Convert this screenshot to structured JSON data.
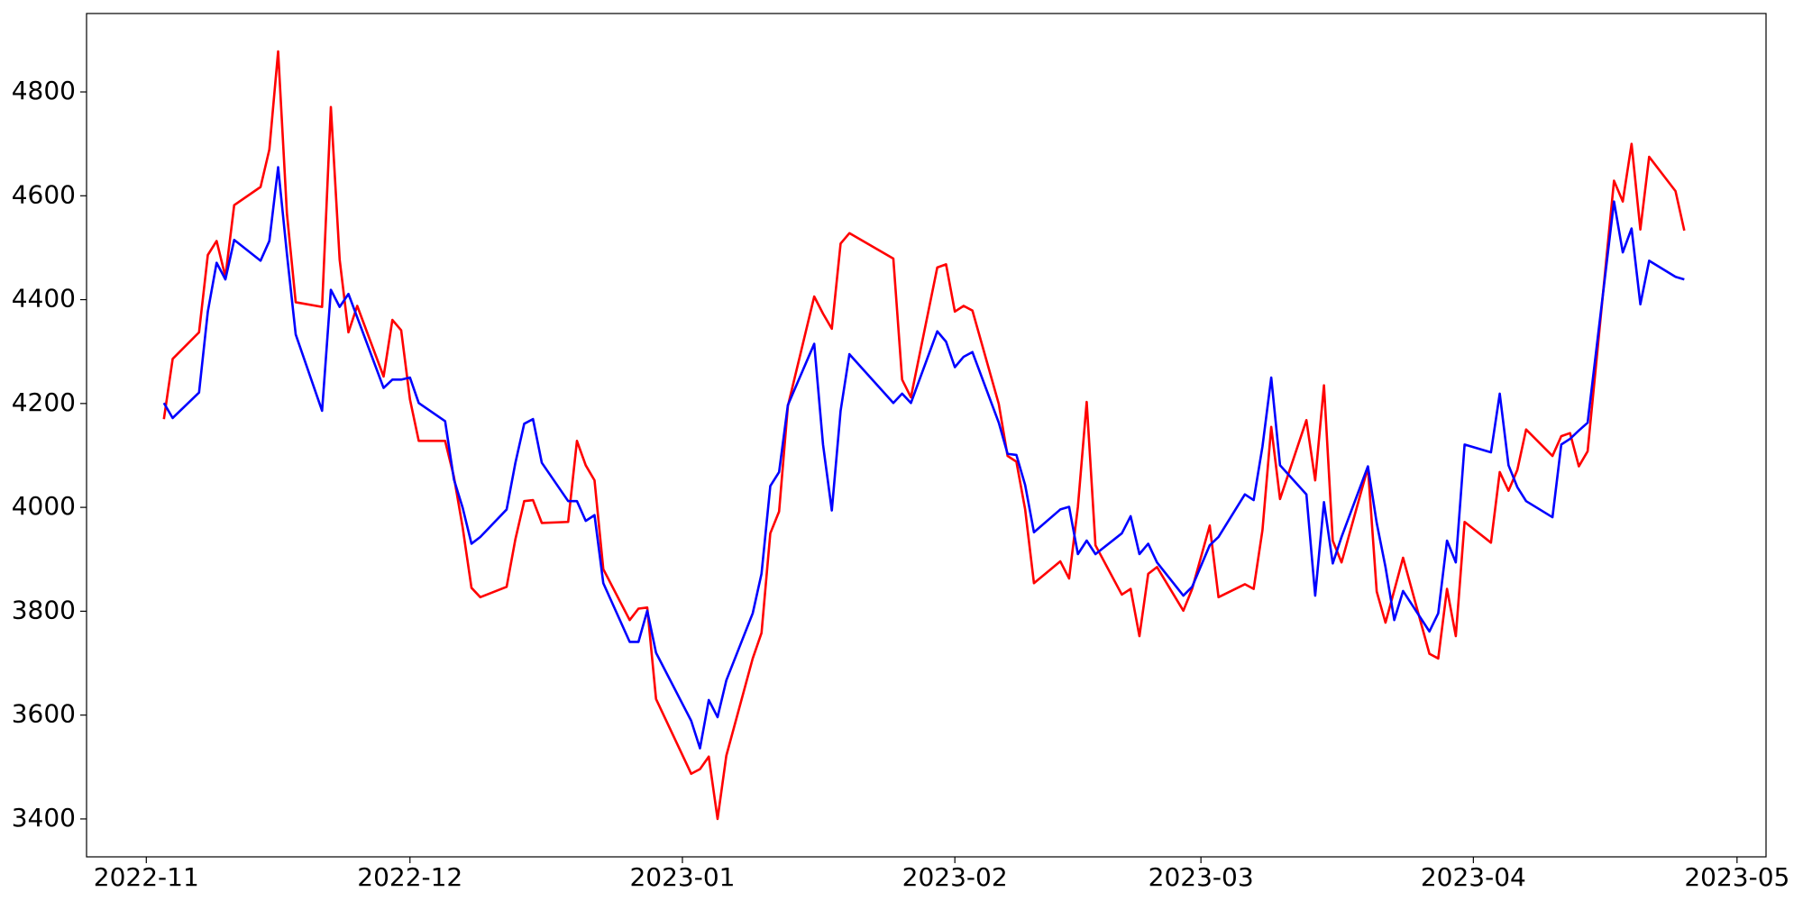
{
  "chart_data": {
    "type": "line",
    "x": [
      19299,
      19300,
      19303,
      19304,
      19305,
      19306,
      19307,
      19310,
      19311,
      19312,
      19313,
      19314,
      19317,
      19318,
      19319,
      19320,
      19321,
      19324,
      19325,
      19326,
      19327,
      19328,
      19331,
      19332,
      19333,
      19334,
      19335,
      19338,
      19339,
      19340,
      19341,
      19342,
      19345,
      19346,
      19347,
      19348,
      19349,
      19352,
      19353,
      19354,
      19355,
      19359,
      19360,
      19361,
      19362,
      19363,
      19366,
      19367,
      19368,
      19369,
      19370,
      19373,
      19374,
      19375,
      19376,
      19377,
      19382,
      19383,
      19384,
      19387,
      19388,
      19389,
      19390,
      19391,
      19394,
      19395,
      19396,
      19397,
      19398,
      19401,
      19402,
      19403,
      19404,
      19405,
      19408,
      19409,
      19410,
      19411,
      19412,
      19415,
      19416,
      19418,
      19419,
      19422,
      19423,
      19424,
      19425,
      19426,
      19429,
      19430,
      19431,
      19432,
      19433,
      19436,
      19437,
      19438,
      19439,
      19440,
      19443,
      19444,
      19445,
      19446,
      19447,
      19450,
      19451,
      19452,
      19453,
      19454,
      19457,
      19458,
      19459,
      19460,
      19461,
      19464,
      19465,
      19466,
      19467,
      19468,
      19471,
      19472
    ],
    "series": [
      {
        "color": "#ff0000",
        "values": [
          4170,
          4286,
          4337,
          4486,
          4513,
          4444,
          4582,
          4617,
          4689,
          4878,
          4566,
          4395,
          4386,
          4771,
          4477,
          4337,
          4388,
          4252,
          4361,
          4341,
          4208,
          4128,
          4128,
          4059,
          3961,
          3845,
          3827,
          3847,
          3939,
          4012,
          4014,
          3970,
          3972,
          4128,
          4081,
          4052,
          3881,
          3783,
          3805,
          3807,
          3631,
          3487,
          3496,
          3520,
          3400,
          3522,
          3709,
          3758,
          3950,
          3992,
          4195,
          4406,
          4373,
          4344,
          4508,
          4528,
          4479,
          4246,
          4212,
          4462,
          4468,
          4377,
          4388,
          4379,
          4199,
          4099,
          4088,
          3996,
          3854,
          3896,
          3863,
          4001,
          4203,
          3927,
          3832,
          3843,
          3752,
          3872,
          3885,
          3801,
          3843,
          3965,
          3827,
          3852,
          3843,
          3956,
          4155,
          4016,
          4168,
          4052,
          4235,
          3936,
          3894,
          4077,
          3838,
          3778,
          3840,
          3903,
          3718,
          3709,
          3843,
          3752,
          3972,
          3932,
          4068,
          4032,
          4072,
          4150,
          4099,
          4137,
          4143,
          4079,
          4108,
          4629,
          4589,
          4700,
          4535,
          4675,
          4609,
          4533
        ]
      },
      {
        "color": "#0000ff",
        "values": [
          4201,
          4172,
          4221,
          4377,
          4471,
          4439,
          4515,
          4475,
          4513,
          4655,
          4488,
          4333,
          4186,
          4419,
          4386,
          4411,
          4366,
          4230,
          4246,
          4246,
          4250,
          4201,
          4166,
          4054,
          3999,
          3930,
          3943,
          3996,
          4086,
          4161,
          4170,
          4086,
          4012,
          4012,
          3974,
          3985,
          3854,
          3741,
          3741,
          3801,
          3720,
          3589,
          3536,
          3629,
          3596,
          3667,
          3796,
          3872,
          4041,
          4068,
          4197,
          4315,
          4121,
          3994,
          4186,
          4295,
          4201,
          4219,
          4201,
          4339,
          4319,
          4270,
          4290,
          4299,
          4163,
          4103,
          4101,
          4043,
          3952,
          3996,
          4001,
          3910,
          3936,
          3910,
          3950,
          3983,
          3910,
          3930,
          3894,
          3830,
          3847,
          3927,
          3943,
          4025,
          4014,
          4117,
          4250,
          4081,
          4025,
          3830,
          4010,
          3892,
          3943,
          4079,
          3970,
          3885,
          3783,
          3839,
          3761,
          3796,
          3936,
          3894,
          4121,
          4106,
          4219,
          4081,
          4039,
          4012,
          3981,
          4121,
          4132,
          4148,
          4163,
          4589,
          4491,
          4537,
          4391,
          4475,
          4444,
          4439
        ]
      }
    ],
    "xlim": [
      19290.2,
      19481.3
    ],
    "xticks": [
      {
        "value": 19297,
        "label": "2022-11"
      },
      {
        "value": 19327,
        "label": "2022-12"
      },
      {
        "value": 19358,
        "label": "2023-01"
      },
      {
        "value": 19389,
        "label": "2023-02"
      },
      {
        "value": 19417,
        "label": "2023-03"
      },
      {
        "value": 19448,
        "label": "2023-04"
      },
      {
        "value": 19478,
        "label": "2023-05"
      }
    ],
    "ylim": [
      3327,
      4951
    ],
    "yticks": [
      3400,
      3600,
      3800,
      4000,
      4200,
      4400,
      4600,
      4800
    ],
    "grid": false
  }
}
